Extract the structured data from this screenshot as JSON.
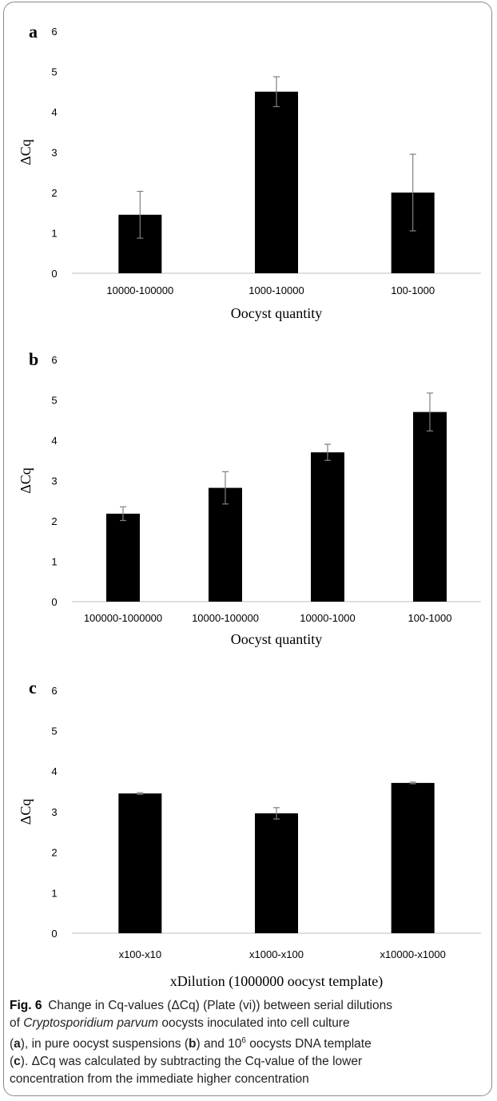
{
  "chart_data": [
    {
      "type": "bar",
      "panel": "a",
      "categories": [
        "10000-100000",
        "1000-10000",
        "100-1000"
      ],
      "values": [
        1.45,
        4.5,
        2.0
      ],
      "errors": [
        0.58,
        0.37,
        0.95
      ],
      "ylabel": "ΔCq",
      "xlabel": "Oocyst quantity",
      "ylim": [
        0,
        6
      ],
      "yticks": [
        "0",
        "1",
        "2",
        "3",
        "4",
        "5",
        "6"
      ],
      "grid": false
    },
    {
      "type": "bar",
      "panel": "b",
      "categories": [
        "100000-1000000",
        "10000-100000",
        "10000-1000",
        "100-1000"
      ],
      "values": [
        2.18,
        2.82,
        3.7,
        4.7
      ],
      "errors": [
        0.17,
        0.4,
        0.2,
        0.47
      ],
      "ylabel": "ΔCq",
      "xlabel": "Oocyst quantity",
      "ylim": [
        0,
        6
      ],
      "yticks": [
        "0",
        "1",
        "2",
        "3",
        "4",
        "5",
        "6"
      ],
      "grid": false
    },
    {
      "type": "bar",
      "panel": "c",
      "categories": [
        "x100-x10",
        "x1000-x100",
        "x10000-x1000"
      ],
      "values": [
        3.45,
        2.96,
        3.71
      ],
      "errors": [
        0.02,
        0.14,
        0.02
      ],
      "ylabel": "ΔCq",
      "xlabel": "xDilution (1000000 oocyst template)",
      "ylim": [
        0,
        6
      ],
      "yticks": [
        "0",
        "1",
        "2",
        "3",
        "4",
        "5",
        "6"
      ],
      "grid": false
    }
  ],
  "caption": {
    "label": "Fig. 6",
    "lines": [
      {
        "segs": [
          {
            "t": "Change in Cq-values (ΔCq) (Plate (vi)) between serial dilutions",
            "s": "n"
          }
        ]
      },
      {
        "segs": [
          {
            "t": "of ",
            "s": "n"
          },
          {
            "t": "Cryptosporidium parvum",
            "s": "i"
          },
          {
            "t": " oocysts inoculated into cell culture",
            "s": "n"
          }
        ]
      },
      {
        "segs": [
          {
            "t": "(",
            "s": "n"
          },
          {
            "t": "a",
            "s": "b"
          },
          {
            "t": "), in pure oocyst suspensions (",
            "s": "n"
          },
          {
            "t": "b",
            "s": "b"
          },
          {
            "t": ") and 10",
            "s": "n"
          },
          {
            "t": "6",
            "s": "sup"
          },
          {
            "t": " oocysts DNA template",
            "s": "n"
          }
        ]
      },
      {
        "segs": [
          {
            "t": "(",
            "s": "n"
          },
          {
            "t": "c",
            "s": "b"
          },
          {
            "t": "). ΔCq was calculated by subtracting the Cq-value of the lower",
            "s": "n"
          }
        ]
      },
      {
        "segs": [
          {
            "t": "concentration from the immediate higher concentration",
            "s": "n"
          }
        ]
      }
    ]
  }
}
